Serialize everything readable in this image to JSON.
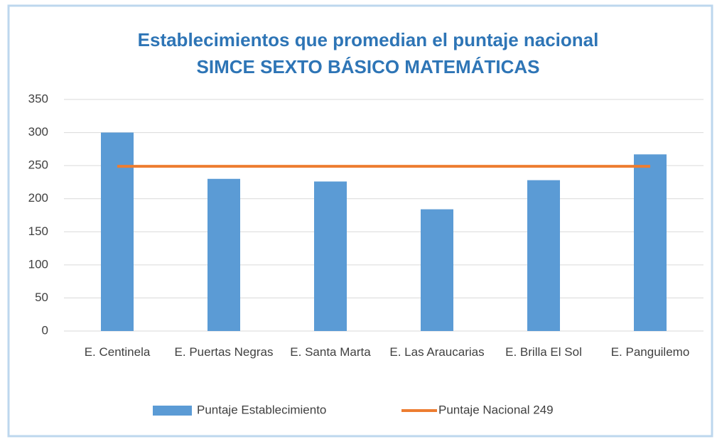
{
  "chart_data": {
    "type": "bar",
    "title": "Establecimientos que promedian el puntaje nacional",
    "subtitle": "SIMCE SEXTO BÁSICO MATEMÁTICAS",
    "categories": [
      "E. Centinela",
      "E. Puertas Negras",
      "E. Santa Marta",
      "E. Las Araucarias",
      "E. Brilla El Sol",
      "E. Panguilemo"
    ],
    "series": [
      {
        "name": "Puntaje Establecimiento",
        "type": "bar",
        "color": "#5b9bd5",
        "values": [
          300,
          230,
          226,
          184,
          228,
          267
        ]
      },
      {
        "name": "Puntaje Nacional 249",
        "type": "line",
        "color": "#ed7d31",
        "values": [
          249,
          249,
          249,
          249,
          249,
          249
        ]
      }
    ],
    "ylim": [
      0,
      350
    ],
    "yticks": [
      0,
      50,
      100,
      150,
      200,
      250,
      300,
      350
    ],
    "grid": true,
    "legend": "bottom"
  }
}
